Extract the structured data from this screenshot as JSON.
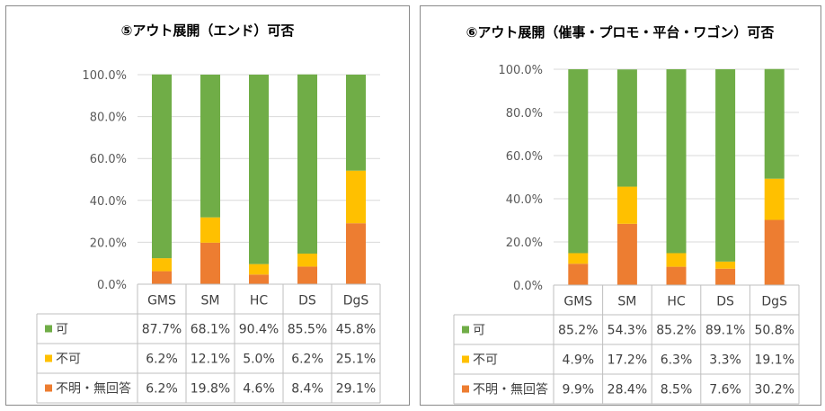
{
  "colors": {
    "ka": "#70AD47",
    "fuka": "#FFC000",
    "fumei": "#ED7D31"
  },
  "chart_data": [
    {
      "type": "bar",
      "stacked": true,
      "title": "⑤アウト展開（エンド）可否",
      "categories": [
        "GMS",
        "SM",
        "HC",
        "DS",
        "DgS"
      ],
      "ylim": [
        0,
        100
      ],
      "yticks": [
        "0.0%",
        "20.0%",
        "40.0%",
        "60.0%",
        "80.0%",
        "100.0%"
      ],
      "series": [
        {
          "name": "不明・無回答",
          "color": "#ED7D31",
          "values": [
            6.2,
            19.8,
            4.6,
            8.4,
            29.1
          ],
          "labels": [
            "6.2%",
            "19.8%",
            "4.6%",
            "8.4%",
            "29.1%"
          ]
        },
        {
          "name": "不可",
          "color": "#FFC000",
          "values": [
            6.2,
            12.1,
            5.0,
            6.2,
            25.1
          ],
          "labels": [
            "6.2%",
            "12.1%",
            "5.0%",
            "6.2%",
            "25.1%"
          ]
        },
        {
          "name": "可",
          "color": "#70AD47",
          "values": [
            87.7,
            68.1,
            90.4,
            85.5,
            45.8
          ],
          "labels": [
            "87.7%",
            "68.1%",
            "90.4%",
            "85.5%",
            "45.8%"
          ]
        }
      ],
      "table_order": [
        "可",
        "不可",
        "不明・無回答"
      ],
      "legend": "data-table"
    },
    {
      "type": "bar",
      "stacked": true,
      "title": "⑥アウト展開（催事・プロモ・平台・ワゴン）可否",
      "categories": [
        "GMS",
        "SM",
        "HC",
        "DS",
        "DgS"
      ],
      "ylim": [
        0,
        100
      ],
      "yticks": [
        "0.0%",
        "20.0%",
        "40.0%",
        "60.0%",
        "80.0%",
        "100.0%"
      ],
      "series": [
        {
          "name": "不明・無回答",
          "color": "#ED7D31",
          "values": [
            9.9,
            28.4,
            8.5,
            7.6,
            30.2
          ],
          "labels": [
            "9.9%",
            "28.4%",
            "8.5%",
            "7.6%",
            "30.2%"
          ]
        },
        {
          "name": "不可",
          "color": "#FFC000",
          "values": [
            4.9,
            17.2,
            6.3,
            3.3,
            19.1
          ],
          "labels": [
            "4.9%",
            "17.2%",
            "6.3%",
            "3.3%",
            "19.1%"
          ]
        },
        {
          "name": "可",
          "color": "#70AD47",
          "values": [
            85.2,
            54.3,
            85.2,
            89.1,
            50.8
          ],
          "labels": [
            "85.2%",
            "54.3%",
            "85.2%",
            "89.1%",
            "50.8%"
          ]
        }
      ],
      "table_order": [
        "可",
        "不可",
        "不明・無回答"
      ],
      "legend": "data-table"
    }
  ]
}
